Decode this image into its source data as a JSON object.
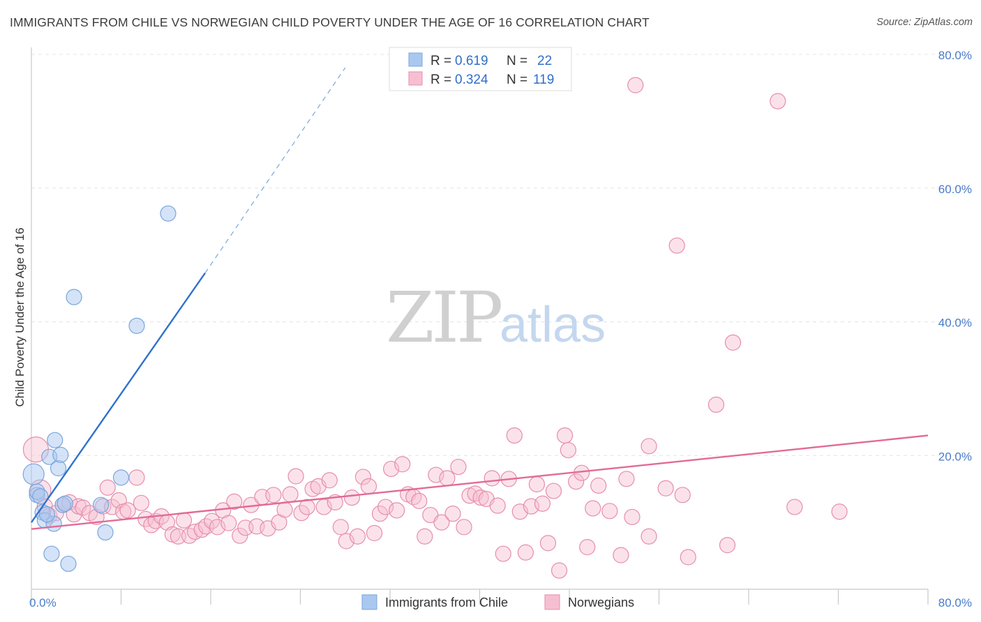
{
  "title": "IMMIGRANTS FROM CHILE VS NORWEGIAN CHILD POVERTY UNDER THE AGE OF 16 CORRELATION CHART",
  "source": "Source: ZipAtlas.com",
  "watermark": {
    "part1": "ZIP",
    "part2": "atlas"
  },
  "colors": {
    "blue_fill": "#a9c8f0",
    "blue_stroke": "#7aa6dd",
    "blue_line": "#2f72cc",
    "pink_fill": "#f6bfd1",
    "pink_stroke": "#e68eab",
    "pink_line": "#e26a97",
    "tick": "#4a7cc9",
    "grid": "#e4e4e4"
  },
  "legend": {
    "rows": [
      {
        "r_label": "R =",
        "r_value": "0.619",
        "n_label": "N =",
        "n_value": "22"
      },
      {
        "r_label": "R =",
        "r_value": "0.324",
        "n_label": "N =",
        "n_value": "119"
      }
    ]
  },
  "bottom_legend": {
    "series1": "Immigrants from Chile",
    "series2": "Norwegians"
  },
  "chart_data": {
    "type": "scatter",
    "xlabel": "",
    "ylabel": "Child Poverty Under the Age of 16",
    "xlim": [
      0,
      80
    ],
    "ylim": [
      0,
      80
    ],
    "x_tick_labels": [
      "0.0%",
      "80.0%"
    ],
    "y_tick_labels": [
      "20.0%",
      "40.0%",
      "60.0%",
      "80.0%"
    ],
    "y_ticks": [
      20,
      40,
      60,
      80
    ],
    "series": [
      {
        "name": "Immigrants from Chile",
        "r": 0.619,
        "n": 22,
        "trend": {
          "x": [
            0,
            15.5
          ],
          "y": [
            10.0,
            47.3
          ]
        },
        "trend_dashed": {
          "x": [
            15.5,
            28.0
          ],
          "y": [
            47.3,
            78.0
          ]
        },
        "points": [
          [
            0.2,
            17.2,
            30
          ],
          [
            0.5,
            14.1,
            22
          ],
          [
            0.5,
            14.6,
            22
          ],
          [
            1.0,
            11.5,
            22
          ],
          [
            1.2,
            10.3,
            22
          ],
          [
            1.6,
            19.8,
            22
          ],
          [
            2.0,
            9.8,
            22
          ],
          [
            2.1,
            22.3,
            22
          ],
          [
            2.4,
            18.1,
            22
          ],
          [
            2.6,
            20.1,
            22
          ],
          [
            2.8,
            12.6,
            22
          ],
          [
            3.0,
            12.8,
            22
          ],
          [
            1.8,
            5.3,
            22
          ],
          [
            3.3,
            3.8,
            22
          ],
          [
            3.8,
            43.7,
            22
          ],
          [
            6.2,
            12.6,
            22
          ],
          [
            6.6,
            8.5,
            22
          ],
          [
            8.0,
            16.7,
            22
          ],
          [
            9.4,
            39.4,
            22
          ],
          [
            12.2,
            56.2,
            22
          ],
          [
            0.8,
            13.9,
            22
          ],
          [
            1.4,
            11.2,
            22
          ]
        ]
      },
      {
        "name": "Norwegians",
        "r": 0.324,
        "n": 119,
        "trend": {
          "x": [
            0,
            80
          ],
          "y": [
            9.0,
            23.0
          ]
        },
        "points": [
          [
            0.4,
            20.9,
            36
          ],
          [
            0.8,
            14.8,
            30
          ],
          [
            1.2,
            12.4,
            22
          ],
          [
            1.6,
            11.0,
            22
          ],
          [
            2.2,
            11.4,
            22
          ],
          [
            2.8,
            12.6,
            22
          ],
          [
            3.4,
            13.0,
            22
          ],
          [
            3.8,
            11.2,
            22
          ],
          [
            4.2,
            12.4,
            22
          ],
          [
            4.6,
            12.2,
            22
          ],
          [
            5.2,
            11.4,
            22
          ],
          [
            5.8,
            10.8,
            22
          ],
          [
            6.4,
            12.4,
            22
          ],
          [
            6.8,
            15.2,
            22
          ],
          [
            7.2,
            12.3,
            22
          ],
          [
            7.8,
            13.3,
            22
          ],
          [
            8.2,
            11.6,
            22
          ],
          [
            8.6,
            11.8,
            22
          ],
          [
            9.4,
            16.7,
            22
          ],
          [
            9.8,
            12.9,
            22
          ],
          [
            10.2,
            10.5,
            22
          ],
          [
            10.7,
            9.6,
            22
          ],
          [
            11.1,
            10.2,
            22
          ],
          [
            11.6,
            10.9,
            22
          ],
          [
            12.1,
            10.0,
            22
          ],
          [
            12.6,
            8.2,
            22
          ],
          [
            13.1,
            7.9,
            22
          ],
          [
            13.6,
            10.3,
            22
          ],
          [
            14.1,
            8.0,
            22
          ],
          [
            14.6,
            8.6,
            22
          ],
          [
            15.2,
            8.9,
            22
          ],
          [
            15.6,
            9.4,
            22
          ],
          [
            16.1,
            10.2,
            22
          ],
          [
            16.6,
            9.3,
            22
          ],
          [
            17.1,
            11.8,
            22
          ],
          [
            17.6,
            9.9,
            22
          ],
          [
            18.1,
            13.1,
            22
          ],
          [
            18.6,
            8.0,
            22
          ],
          [
            19.1,
            9.2,
            22
          ],
          [
            19.6,
            12.6,
            22
          ],
          [
            20.1,
            9.4,
            22
          ],
          [
            20.6,
            13.8,
            22
          ],
          [
            21.1,
            9.1,
            22
          ],
          [
            21.6,
            14.1,
            22
          ],
          [
            22.1,
            10.0,
            22
          ],
          [
            22.6,
            11.9,
            22
          ],
          [
            23.1,
            14.2,
            22
          ],
          [
            23.6,
            16.9,
            22
          ],
          [
            24.1,
            11.4,
            22
          ],
          [
            24.6,
            12.3,
            22
          ],
          [
            25.1,
            15.0,
            22
          ],
          [
            25.6,
            15.4,
            22
          ],
          [
            26.1,
            12.3,
            22
          ],
          [
            26.6,
            16.3,
            22
          ],
          [
            27.1,
            13.0,
            22
          ],
          [
            27.6,
            9.3,
            22
          ],
          [
            28.1,
            7.2,
            22
          ],
          [
            28.6,
            13.7,
            22
          ],
          [
            29.1,
            7.9,
            22
          ],
          [
            29.6,
            16.8,
            22
          ],
          [
            30.1,
            15.4,
            22
          ],
          [
            30.6,
            8.4,
            22
          ],
          [
            31.1,
            11.3,
            22
          ],
          [
            31.6,
            12.3,
            22
          ],
          [
            32.1,
            18.0,
            22
          ],
          [
            32.6,
            11.8,
            22
          ],
          [
            33.1,
            18.7,
            22
          ],
          [
            33.6,
            14.2,
            22
          ],
          [
            34.1,
            13.8,
            22
          ],
          [
            34.6,
            13.2,
            22
          ],
          [
            35.1,
            7.9,
            22
          ],
          [
            35.6,
            11.1,
            22
          ],
          [
            36.1,
            17.1,
            22
          ],
          [
            36.6,
            10.0,
            22
          ],
          [
            37.1,
            16.6,
            22
          ],
          [
            37.6,
            11.3,
            22
          ],
          [
            38.1,
            18.3,
            22
          ],
          [
            38.6,
            9.3,
            22
          ],
          [
            39.1,
            14.0,
            22
          ],
          [
            39.6,
            14.3,
            22
          ],
          [
            40.1,
            13.7,
            22
          ],
          [
            40.6,
            13.5,
            22
          ],
          [
            41.1,
            16.6,
            22
          ],
          [
            41.6,
            12.5,
            22
          ],
          [
            42.1,
            5.3,
            22
          ],
          [
            42.6,
            16.5,
            22
          ],
          [
            43.1,
            23.0,
            22
          ],
          [
            43.6,
            11.6,
            22
          ],
          [
            44.1,
            5.5,
            22
          ],
          [
            44.6,
            12.4,
            22
          ],
          [
            45.1,
            15.7,
            22
          ],
          [
            45.6,
            12.8,
            22
          ],
          [
            46.1,
            6.9,
            22
          ],
          [
            46.6,
            14.7,
            22
          ],
          [
            47.1,
            2.8,
            22
          ],
          [
            47.6,
            23.0,
            22
          ],
          [
            47.9,
            20.8,
            22
          ],
          [
            48.6,
            16.1,
            22
          ],
          [
            49.1,
            17.4,
            22
          ],
          [
            49.6,
            6.3,
            22
          ],
          [
            50.1,
            12.1,
            22
          ],
          [
            50.6,
            15.5,
            22
          ],
          [
            51.6,
            11.7,
            22
          ],
          [
            52.6,
            5.1,
            22
          ],
          [
            53.1,
            16.5,
            22
          ],
          [
            53.6,
            10.8,
            22
          ],
          [
            55.1,
            21.4,
            22
          ],
          [
            55.1,
            7.9,
            22
          ],
          [
            56.6,
            15.1,
            22
          ],
          [
            57.6,
            51.4,
            22
          ],
          [
            58.1,
            14.1,
            22
          ],
          [
            61.1,
            27.6,
            22
          ],
          [
            62.1,
            6.6,
            22
          ],
          [
            62.6,
            36.9,
            22
          ],
          [
            66.6,
            73.0,
            22
          ],
          [
            68.1,
            12.3,
            22
          ],
          [
            72.1,
            11.6,
            22
          ],
          [
            53.9,
            75.4,
            22
          ],
          [
            58.6,
            4.8,
            22
          ]
        ]
      }
    ]
  }
}
